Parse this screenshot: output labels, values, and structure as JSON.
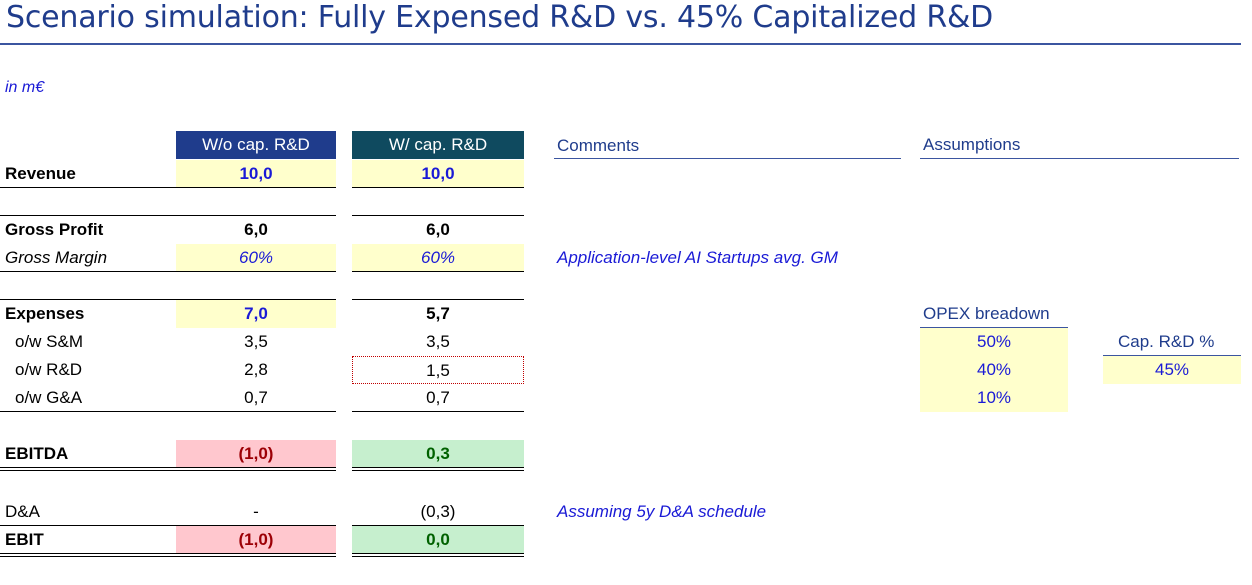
{
  "title": "Scenario simulation: Fully Expensed R&D vs. 45% Capitalized R&D",
  "unit": "in m€",
  "columns": {
    "col1": "W/o cap. R&D",
    "col2": "W/ cap. R&D",
    "comments": "Comments",
    "assumptions": "Assumptions"
  },
  "rows": {
    "revenue": {
      "label": "Revenue",
      "v1": "10,0",
      "v2": "10,0"
    },
    "gross_profit": {
      "label": "Gross Profit",
      "v1": "6,0",
      "v2": "6,0"
    },
    "gross_margin": {
      "label": "Gross Margin",
      "v1": "60%",
      "v2": "60%",
      "comment": "Application-level AI Startups avg. GM"
    },
    "expenses": {
      "label": "Expenses",
      "v1": "7,0",
      "v2": "5,7"
    },
    "sm": {
      "label": "o/w S&M",
      "v1": "3,5",
      "v2": "3,5"
    },
    "rd": {
      "label": "o/w R&D",
      "v1": "2,8",
      "v2": "1,5"
    },
    "ga": {
      "label": "o/w G&A",
      "v1": "0,7",
      "v2": "0,7"
    },
    "ebitda": {
      "label": "EBITDA",
      "v1": "(1,0)",
      "v2": "0,3"
    },
    "da": {
      "label": "D&A",
      "v1": "-",
      "v2": "(0,3)",
      "comment": "Assuming 5y D&A schedule"
    },
    "ebit": {
      "label": "EBIT",
      "v1": "(1,0)",
      "v2": "0,0"
    }
  },
  "assumptions": {
    "opex_header": "OPEX breadown",
    "opex_sm": "50%",
    "opex_rd": "40%",
    "opex_ga": "10%",
    "cap_header": "Cap. R&D %",
    "cap_value": "45%"
  },
  "colors": {
    "title": "#1f3c8c",
    "input_fill": "#ffffcc",
    "negative_fill": "#ffc7ce",
    "positive_fill": "#c6efce",
    "header1": "#1f3c8c",
    "header2": "#0f4a5f"
  }
}
